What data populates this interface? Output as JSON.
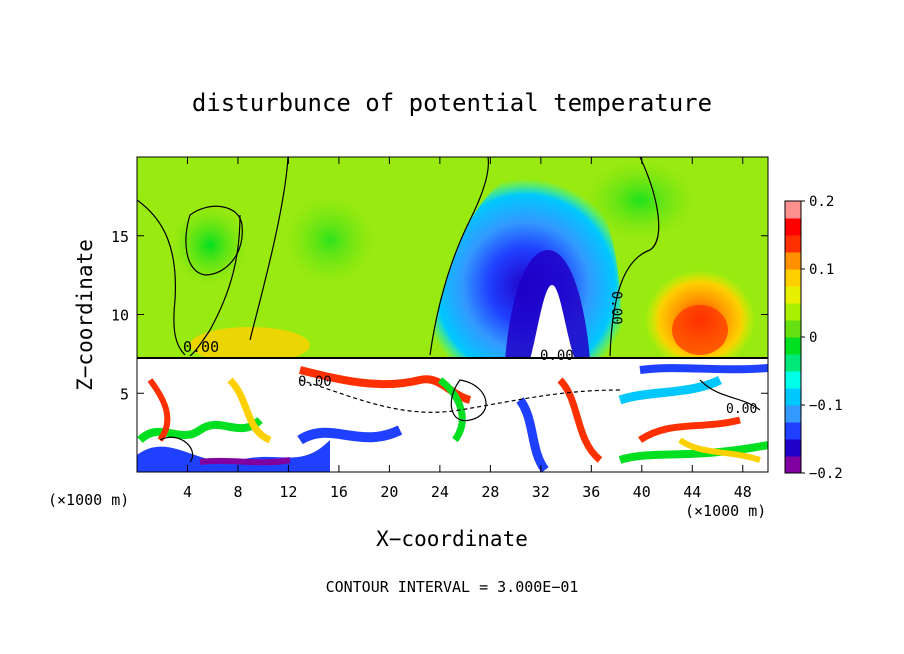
{
  "chart_data": {
    "type": "heatmap",
    "title": "disturbunce of potential temperature",
    "xlabel": "X−coordinate",
    "ylabel": "Z−coordinate",
    "x_unit_left": "(×1000 m)",
    "x_unit_right": "(×1000 m)",
    "xlim": [
      0,
      50
    ],
    "ylim": [
      0,
      20
    ],
    "x_ticks": [
      4,
      8,
      12,
      16,
      20,
      24,
      28,
      32,
      36,
      40,
      44,
      48
    ],
    "y_ticks": [
      5,
      10,
      15
    ],
    "colorbar": {
      "range": [
        -0.2,
        0.2
      ],
      "labels": [
        "0.2",
        "0.1",
        "0",
        "−0.1",
        "−0.2"
      ],
      "label_values": [
        0.2,
        0.1,
        0,
        -0.1,
        -0.2
      ],
      "colors": [
        "#8000a0",
        "#2000c8",
        "#2040ff",
        "#3399ff",
        "#00c8ff",
        "#00ffe8",
        "#00e878",
        "#00e020",
        "#66e010",
        "#aaf000",
        "#e8f000",
        "#ffd000",
        "#ff9000",
        "#ff3000",
        "#ff0000",
        "#ff9090"
      ]
    },
    "contour_labels": [
      "0.00",
      "0.00",
      "0.00",
      "0.00",
      "0.00"
    ],
    "footer": "CONTOUR INTERVAL = 3.000E−01"
  }
}
